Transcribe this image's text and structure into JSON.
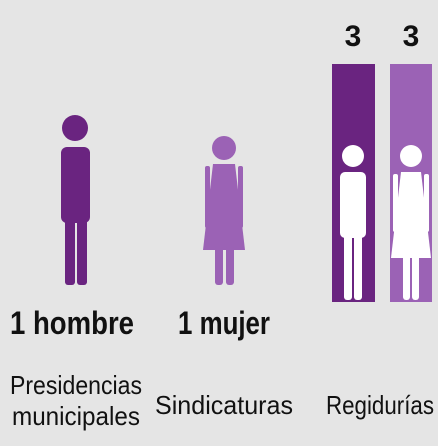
{
  "sections": [
    {
      "count_label": "1 hombre",
      "name_lines": [
        "Presidencias",
        "municipales"
      ]
    },
    {
      "count_label": "1 mujer",
      "name": "Sindicaturas"
    },
    {
      "name": "Regidurías",
      "bars": [
        {
          "value": "3"
        },
        {
          "value": "3"
        }
      ]
    }
  ]
}
